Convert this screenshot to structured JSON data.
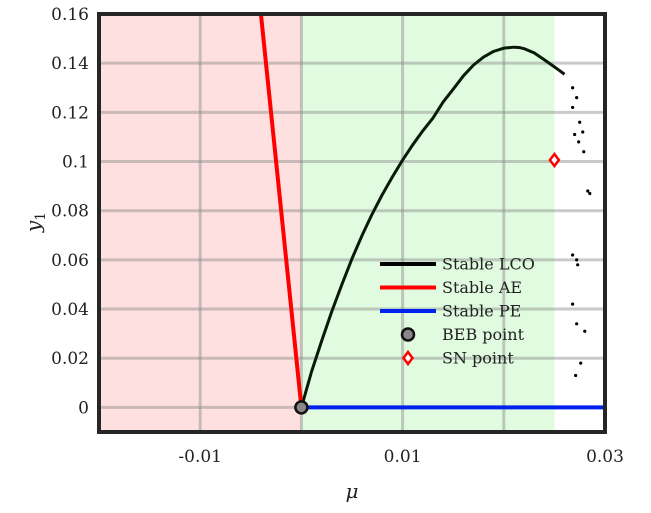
{
  "chart_data": {
    "type": "line",
    "xlabel": "μ",
    "ylabel": "y",
    "ylabel_sub": "1",
    "xlim": [
      -0.02,
      0.03
    ],
    "ylim": [
      -0.01,
      0.16
    ],
    "x_ticks": [
      {
        "value": -0.01,
        "label": "-0.01"
      },
      {
        "value": 0.01,
        "label": "0.01"
      },
      {
        "value": 0.03,
        "label": "0.03"
      }
    ],
    "x_grid": [
      -0.02,
      -0.01,
      0,
      0.01,
      0.02,
      0.03
    ],
    "y_ticks": [
      {
        "value": 0.16,
        "label": "0.16"
      },
      {
        "value": 0.14,
        "label": "0.14"
      },
      {
        "value": 0.12,
        "label": "0.12"
      },
      {
        "value": 0.1,
        "label": "0.1"
      },
      {
        "value": 0.08,
        "label": "0.08"
      },
      {
        "value": 0.06,
        "label": "0.06"
      },
      {
        "value": 0.04,
        "label": "0.04"
      },
      {
        "value": 0.02,
        "label": "0.02"
      },
      {
        "value": 0,
        "label": "0"
      }
    ],
    "grid": true,
    "regions": [
      {
        "x": [
          -0.02,
          0
        ],
        "color": "#ffe0e0"
      },
      {
        "x": [
          0,
          0.025
        ],
        "color": "#e0fbe0"
      }
    ],
    "series": [
      {
        "name": "Stable LCO",
        "color": "#0a1a0a",
        "width": 3,
        "x": [
          0,
          0.001,
          0.002,
          0.003,
          0.004,
          0.005,
          0.006,
          0.007,
          0.008,
          0.009,
          0.01,
          0.011,
          0.012,
          0.013,
          0.014,
          0.015,
          0.016,
          0.017,
          0.018,
          0.019,
          0.02,
          0.021,
          0.0215,
          0.022,
          0.023,
          0.024,
          0.025,
          0.0255,
          0.026
        ],
        "y": [
          0,
          0.0145,
          0.027,
          0.039,
          0.05,
          0.0605,
          0.07,
          0.0787,
          0.0866,
          0.0938,
          0.1006,
          0.1068,
          0.1125,
          0.1177,
          0.1242,
          0.1294,
          0.1348,
          0.1392,
          0.1425,
          0.1448,
          0.1461,
          0.1465,
          0.1464,
          0.1459,
          0.1442,
          0.1414,
          0.1385,
          0.137,
          0.1355
        ]
      },
      {
        "name": "Stable AE",
        "color": "#ff0000",
        "width": 4,
        "x": [
          -0.004,
          0
        ],
        "y": [
          0.16,
          0
        ]
      },
      {
        "name": "Stable PE",
        "color": "#0022ee",
        "width": 4,
        "x": [
          0,
          0.03
        ],
        "y": [
          0,
          0
        ]
      }
    ],
    "scatter_dots": {
      "color": "#000000",
      "points": [
        [
          0.0268,
          0.13
        ],
        [
          0.0272,
          0.126
        ],
        [
          0.0268,
          0.122
        ],
        [
          0.0275,
          0.116
        ],
        [
          0.027,
          0.111
        ],
        [
          0.0278,
          0.112
        ],
        [
          0.0274,
          0.108
        ],
        [
          0.0279,
          0.104
        ],
        [
          0.0283,
          0.088
        ],
        [
          0.0285,
          0.087
        ],
        [
          0.0268,
          0.062
        ],
        [
          0.0272,
          0.06
        ],
        [
          0.0273,
          0.058
        ],
        [
          0.0268,
          0.042
        ],
        [
          0.0272,
          0.034
        ],
        [
          0.028,
          0.031
        ],
        [
          0.0276,
          0.018
        ],
        [
          0.0271,
          0.013
        ]
      ]
    },
    "points": [
      {
        "name": "BEB point",
        "x": 0,
        "y": 0,
        "marker": "circle",
        "fill": "#888888",
        "stroke": "#111111"
      },
      {
        "name": "SN point",
        "x": 0.025,
        "y": 0.1006,
        "marker": "diamond",
        "fill": "#ffffff",
        "stroke": "#ff0000"
      }
    ],
    "legend": {
      "placement": "bottom-right",
      "entries": [
        {
          "label": "Stable LCO",
          "kind": "line",
          "color": "#000000"
        },
        {
          "label": "Stable AE",
          "kind": "line",
          "color": "#ff0000"
        },
        {
          "label": "Stable PE",
          "kind": "line",
          "color": "#0022ee"
        },
        {
          "label": "BEB point",
          "kind": "circle",
          "fill": "#888888",
          "stroke": "#111111"
        },
        {
          "label": "SN point",
          "kind": "diamond",
          "fill": "#ffffff",
          "stroke": "#ff0000"
        }
      ]
    }
  }
}
